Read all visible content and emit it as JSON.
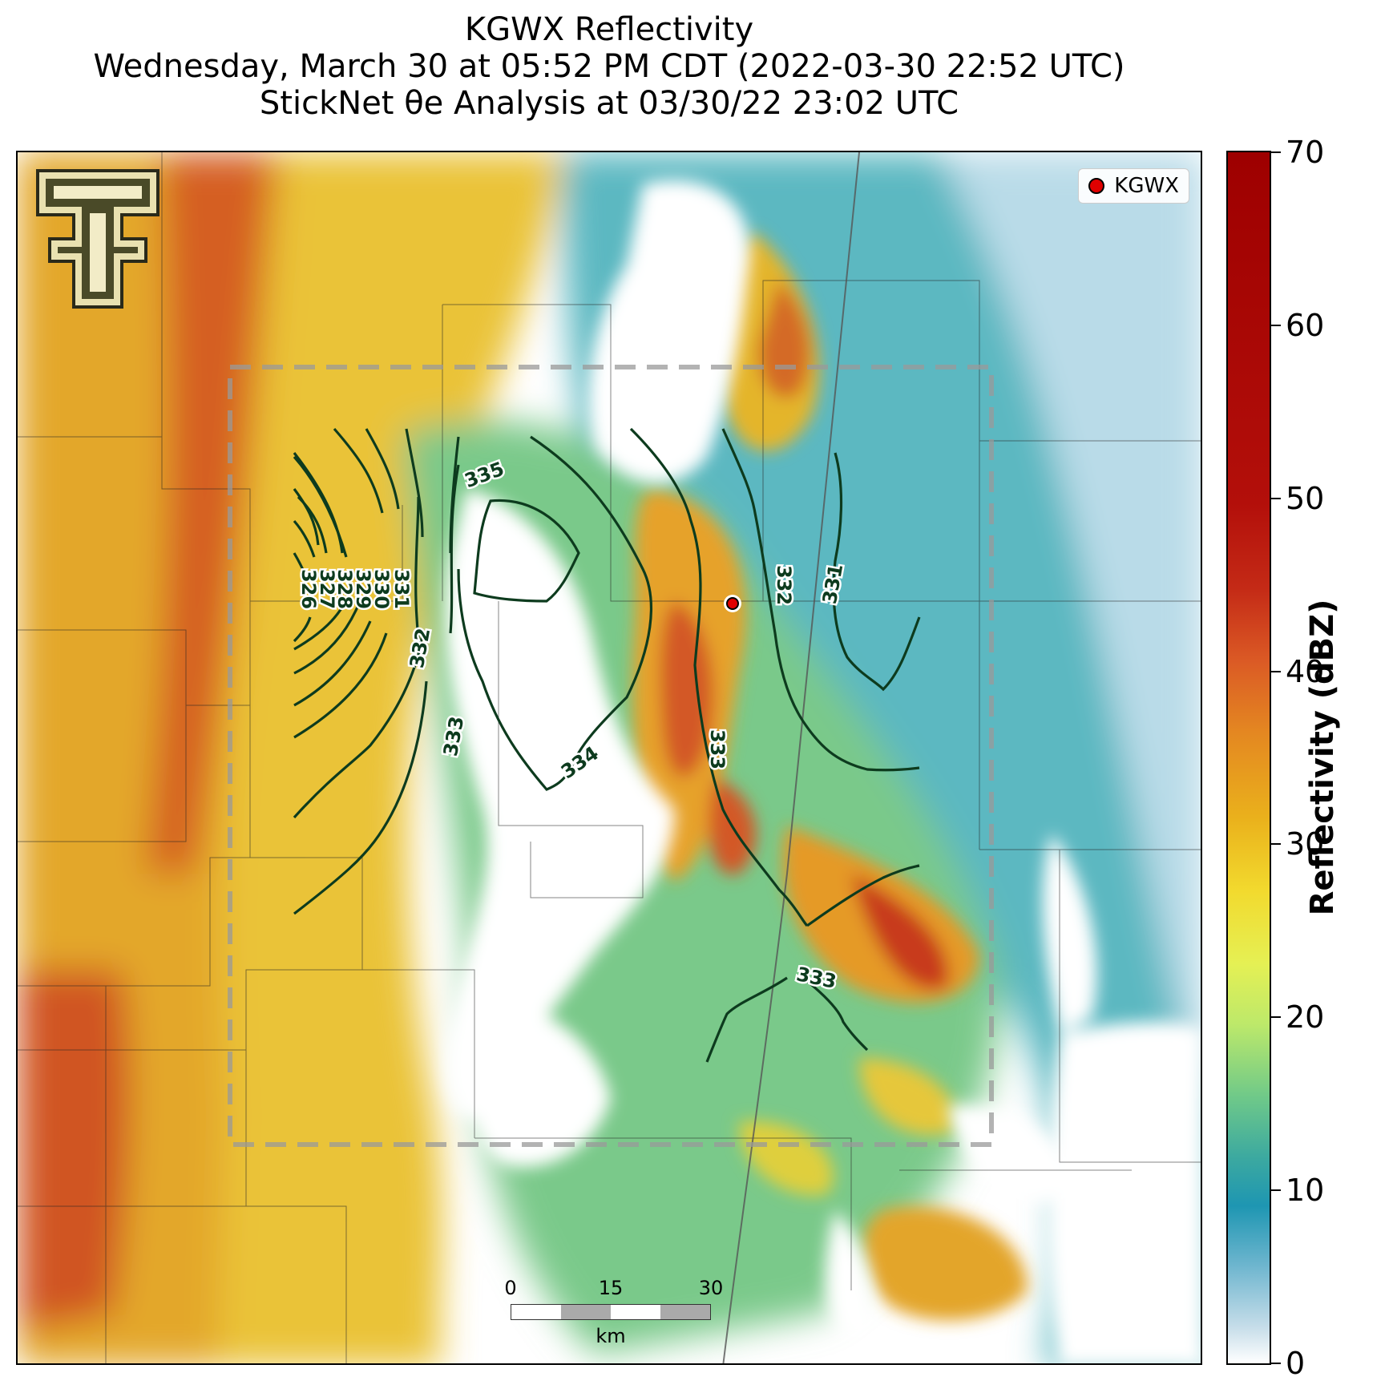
{
  "title": {
    "line1": "KGWX Reflectivity",
    "line2": "Wednesday, March 30 at 05:52 PM CDT (2022-03-30 22:52 UTC)",
    "line3": "StickNet θe Analysis at 03/30/22 23:02 UTC"
  },
  "legend": {
    "station_label": "KGWX"
  },
  "logo": {
    "text": "T",
    "icon": "texas-tech-double-t-logo"
  },
  "scalebar": {
    "ticks": [
      "0",
      "15",
      "30"
    ],
    "unit": "km"
  },
  "colorbar": {
    "title": "Reflectivity (dBZ)",
    "ticks": [
      "70",
      "60",
      "50",
      "40",
      "30",
      "20",
      "10",
      "0"
    ]
  },
  "contours": {
    "labels": [
      "326",
      "327",
      "328",
      "329",
      "330",
      "331",
      "332",
      "333",
      "334",
      "335",
      "332",
      "331",
      "333",
      "333"
    ],
    "color": "#0d3b1e"
  },
  "colors": {
    "high": "#b30f0a",
    "moderate": "#e48821",
    "light": "#e5f054",
    "weak": "#1e96b2",
    "station": "#e00000"
  }
}
